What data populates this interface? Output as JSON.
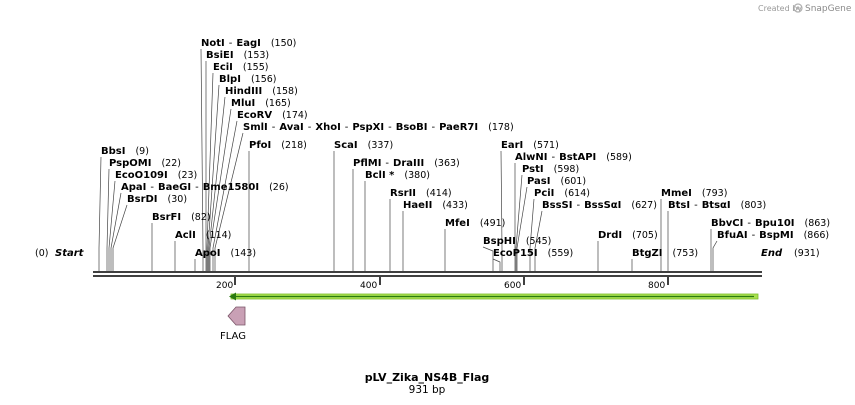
{
  "map": {
    "credit_text": "Created by",
    "brand": "SnapGene",
    "title": "pLV_Zika_NS4B_Flag",
    "subtitle": "931 bp",
    "start_label": "Start",
    "start_pos": "(0)",
    "end_label": "End",
    "end_pos": "(931)",
    "ticks": [
      "200",
      "400",
      "600",
      "800"
    ],
    "features": [
      {
        "name": "FLAG",
        "color": "#c9a0b5",
        "direction": "left"
      },
      {
        "name": "",
        "color": "#a8e04f",
        "direction": "left"
      }
    ],
    "sites": [
      {
        "names": [
          "NotI",
          "EagI"
        ],
        "pos": "(150)"
      },
      {
        "names": [
          "BsiEI"
        ],
        "pos": "(153)"
      },
      {
        "names": [
          "EciI"
        ],
        "pos": "(155)"
      },
      {
        "names": [
          "BlpI"
        ],
        "pos": "(156)"
      },
      {
        "names": [
          "HindIII"
        ],
        "pos": "(158)"
      },
      {
        "names": [
          "MluI"
        ],
        "pos": "(165)"
      },
      {
        "names": [
          "EcoRV"
        ],
        "pos": "(174)"
      },
      {
        "names": [
          "SmlI",
          "AvaI",
          "XhoI",
          "PspXI",
          "BsoBI",
          "PaeR7I"
        ],
        "pos": "(178)"
      },
      {
        "names": [
          "PfoI"
        ],
        "pos": "(218)"
      },
      {
        "names": [
          "ScaI"
        ],
        "pos": "(337)"
      },
      {
        "names": [
          "PflMI",
          "DraIII"
        ],
        "pos": "(363)"
      },
      {
        "names": [
          "BclI *"
        ],
        "pos": "(380)"
      },
      {
        "names": [
          "RsrII"
        ],
        "pos": "(414)"
      },
      {
        "names": [
          "HaeII"
        ],
        "pos": "(433)"
      },
      {
        "names": [
          "MfeI"
        ],
        "pos": "(491)"
      },
      {
        "names": [
          "BspHI"
        ],
        "pos": "(545)"
      },
      {
        "names": [
          "EcoP15I"
        ],
        "pos": "(559)"
      },
      {
        "names": [
          "EarI"
        ],
        "pos": "(571)"
      },
      {
        "names": [
          "AlwNI",
          "BstAPI"
        ],
        "pos": "(589)"
      },
      {
        "names": [
          "PstI"
        ],
        "pos": "(598)"
      },
      {
        "names": [
          "PasI"
        ],
        "pos": "(601)"
      },
      {
        "names": [
          "PciI"
        ],
        "pos": "(614)"
      },
      {
        "names": [
          "BssSI",
          "BssSαI"
        ],
        "pos": "(627)"
      },
      {
        "names": [
          "DrdI"
        ],
        "pos": "(705)"
      },
      {
        "names": [
          "BtgZI"
        ],
        "pos": "(753)"
      },
      {
        "names": [
          "MmeI"
        ],
        "pos": "(793)"
      },
      {
        "names": [
          "BtsI",
          "BtsαI"
        ],
        "pos": "(803)"
      },
      {
        "names": [
          "BbvCI",
          "Bpu10I"
        ],
        "pos": "(863)"
      },
      {
        "names": [
          "BfuAI",
          "BspMI"
        ],
        "pos": "(866)"
      },
      {
        "names": [
          "BbsI"
        ],
        "pos": "(9)"
      },
      {
        "names": [
          "PspOMI"
        ],
        "pos": "(22)"
      },
      {
        "names": [
          "EcoO109I"
        ],
        "pos": "(23)"
      },
      {
        "names": [
          "ApaI",
          "BaeGI",
          "Bme1580I"
        ],
        "pos": "(26)"
      },
      {
        "names": [
          "BsrDI"
        ],
        "pos": "(30)"
      },
      {
        "names": [
          "BsrFI"
        ],
        "pos": "(82)"
      },
      {
        "names": [
          "AclI"
        ],
        "pos": "(114)"
      },
      {
        "names": [
          "ApoI"
        ],
        "pos": "(143)"
      }
    ]
  }
}
